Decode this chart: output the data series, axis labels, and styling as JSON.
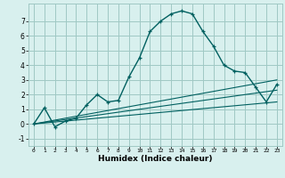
{
  "xlabel": "Humidex (Indice chaleur)",
  "x_ticks": [
    0,
    1,
    2,
    3,
    4,
    5,
    6,
    7,
    8,
    9,
    10,
    11,
    12,
    13,
    14,
    15,
    16,
    17,
    18,
    19,
    20,
    21,
    22,
    23
  ],
  "y_ticks": [
    -1,
    0,
    1,
    2,
    3,
    4,
    5,
    6,
    7
  ],
  "ylim": [
    -1.5,
    8.2
  ],
  "xlim": [
    -0.5,
    23.5
  ],
  "bg_color": "#d8f0ee",
  "grid_color": "#a0c8c4",
  "line_color": "#006060",
  "line1_x": [
    0,
    1,
    2,
    3,
    4,
    5,
    6,
    7,
    8,
    9,
    10,
    11,
    12,
    13,
    14,
    15,
    16,
    17,
    18,
    19,
    20,
    21,
    22,
    23
  ],
  "line1_y": [
    0.0,
    1.1,
    -0.2,
    0.2,
    0.4,
    1.3,
    2.0,
    1.5,
    1.6,
    3.2,
    4.5,
    6.3,
    7.0,
    7.5,
    7.7,
    7.5,
    6.3,
    5.3,
    4.0,
    3.6,
    3.5,
    2.5,
    1.5,
    2.7
  ],
  "line2_x": [
    0,
    23
  ],
  "line2_y": [
    0.0,
    3.0
  ],
  "line3_x": [
    0,
    23
  ],
  "line3_y": [
    0.0,
    1.5
  ],
  "line4_x": [
    0,
    23
  ],
  "line4_y": [
    0.0,
    2.3
  ]
}
